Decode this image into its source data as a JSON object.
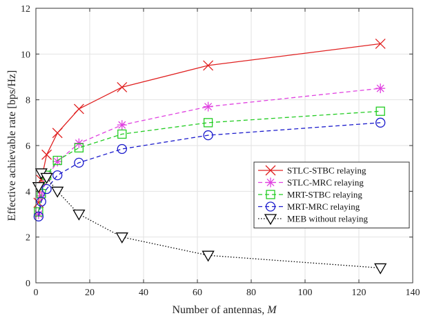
{
  "chart_data": {
    "type": "line",
    "xlabel": "Number of antennas,",
    "xlabel_var": "M",
    "ylabel": "Effective achievable rate [bps/Hz]",
    "xlim": [
      0,
      140
    ],
    "ylim": [
      0,
      12
    ],
    "xticks": [
      0,
      20,
      40,
      60,
      80,
      100,
      120,
      140
    ],
    "yticks": [
      0,
      2,
      4,
      6,
      8,
      10,
      12
    ],
    "grid": true,
    "legend_position": "center-right",
    "series": [
      {
        "name": "STLC-STBC relaying",
        "color": "#e02020",
        "dash": "solid",
        "marker": "x",
        "x": [
          1,
          2,
          4,
          8,
          16,
          32,
          64,
          128
        ],
        "y": [
          3.5,
          4.5,
          5.6,
          6.55,
          7.6,
          8.55,
          9.5,
          10.45
        ]
      },
      {
        "name": "STLC-MRC relaying",
        "color": "#e040e0",
        "dash": "dashed",
        "marker": "star",
        "x": [
          1,
          2,
          4,
          8,
          16,
          32,
          64,
          128
        ],
        "y": [
          3.0,
          3.8,
          4.6,
          5.3,
          6.1,
          6.9,
          7.7,
          8.5
        ]
      },
      {
        "name": "MRT-STBC relaying",
        "color": "#22cc22",
        "dash": "dashed",
        "marker": "square",
        "x": [
          1,
          2,
          4,
          8,
          16,
          32,
          64,
          128
        ],
        "y": [
          3.1,
          3.9,
          4.7,
          5.35,
          5.9,
          6.5,
          7.0,
          7.5
        ]
      },
      {
        "name": "MRT-MRC relaying",
        "color": "#1a1acc",
        "dash": "dashed",
        "marker": "circle",
        "x": [
          1,
          2,
          4,
          8,
          16,
          32,
          64,
          128
        ],
        "y": [
          2.9,
          3.55,
          4.1,
          4.7,
          5.25,
          5.85,
          6.45,
          7.0
        ]
      },
      {
        "name": "MEB without relaying",
        "color": "#000000",
        "dash": "dotted",
        "marker": "triangle-down",
        "x": [
          1,
          2,
          4,
          8,
          16,
          32,
          64,
          128
        ],
        "y": [
          4.2,
          4.8,
          4.6,
          4.0,
          3.0,
          2.0,
          1.2,
          0.65
        ]
      }
    ]
  }
}
